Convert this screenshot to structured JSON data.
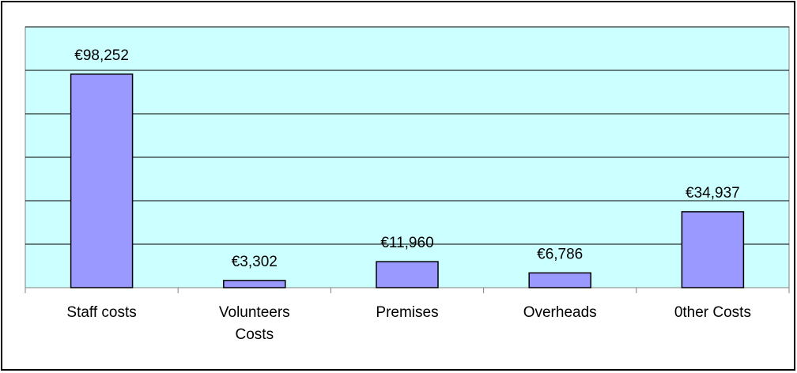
{
  "chart_data": {
    "type": "bar",
    "categories": [
      "Staff costs",
      "Volunteers Costs",
      "Premises",
      "Overheads",
      "0ther Costs"
    ],
    "values": [
      98252,
      3302,
      11960,
      6786,
      34937
    ],
    "value_labels": [
      "€98,252",
      "€3,302",
      "€11,960",
      "€6,786",
      "€34,937"
    ],
    "color": "#9999ff",
    "ylim": [
      0,
      120000
    ],
    "yticks": [
      0,
      20000,
      40000,
      60000,
      80000,
      100000,
      120000
    ],
    "grid": true
  }
}
